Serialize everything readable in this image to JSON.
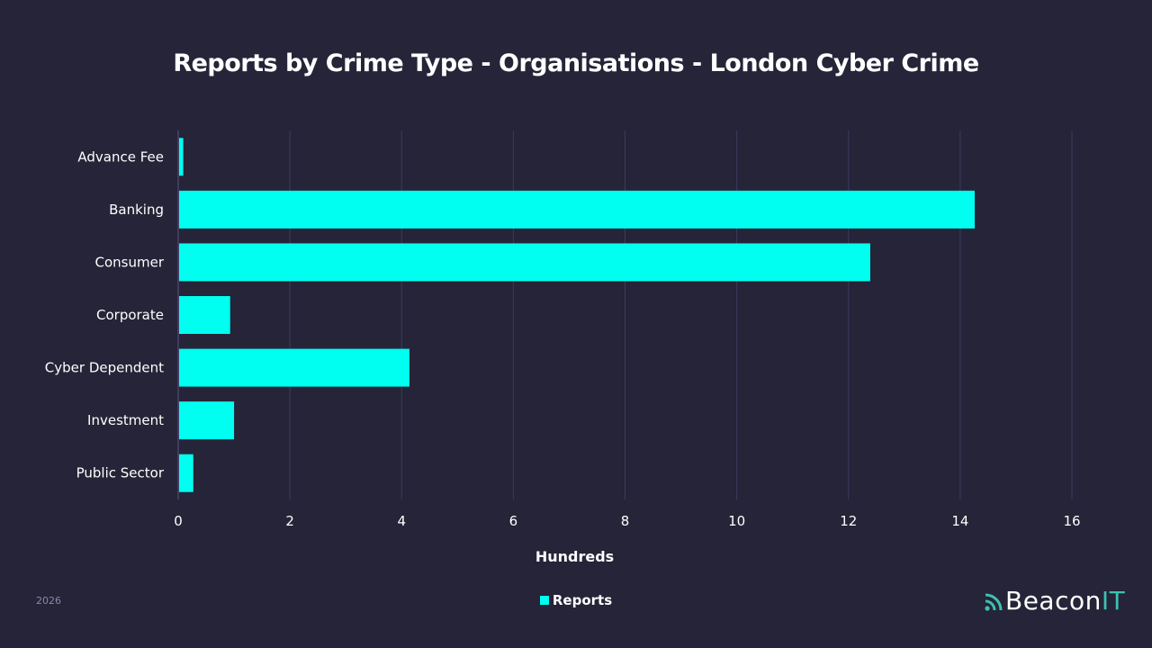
{
  "chart_data": {
    "type": "bar",
    "orientation": "horizontal",
    "title": "Reports by Crime Type - Organisations - London Cyber Crime",
    "xlabel": "Hundreds",
    "ylabel": "",
    "categories": [
      "Advance Fee",
      "Banking",
      "Consumer",
      "Corporate",
      "Cyber Dependent",
      "Investment",
      "Public Sector"
    ],
    "series": [
      {
        "name": "Reports",
        "values": [
          0.09,
          14.26,
          12.39,
          0.93,
          4.14,
          1.0,
          0.27
        ],
        "color": "#00fff0"
      }
    ],
    "xlim": [
      0,
      16
    ],
    "xticks": [
      "0",
      "2",
      "4",
      "6",
      "8",
      "10",
      "12",
      "14",
      "16"
    ],
    "grid": true,
    "legend": "bottom"
  },
  "footer": {
    "year": "2026",
    "logo_main": "Beacon",
    "logo_accent": "IT",
    "accent_color": "#3fc1b0"
  }
}
